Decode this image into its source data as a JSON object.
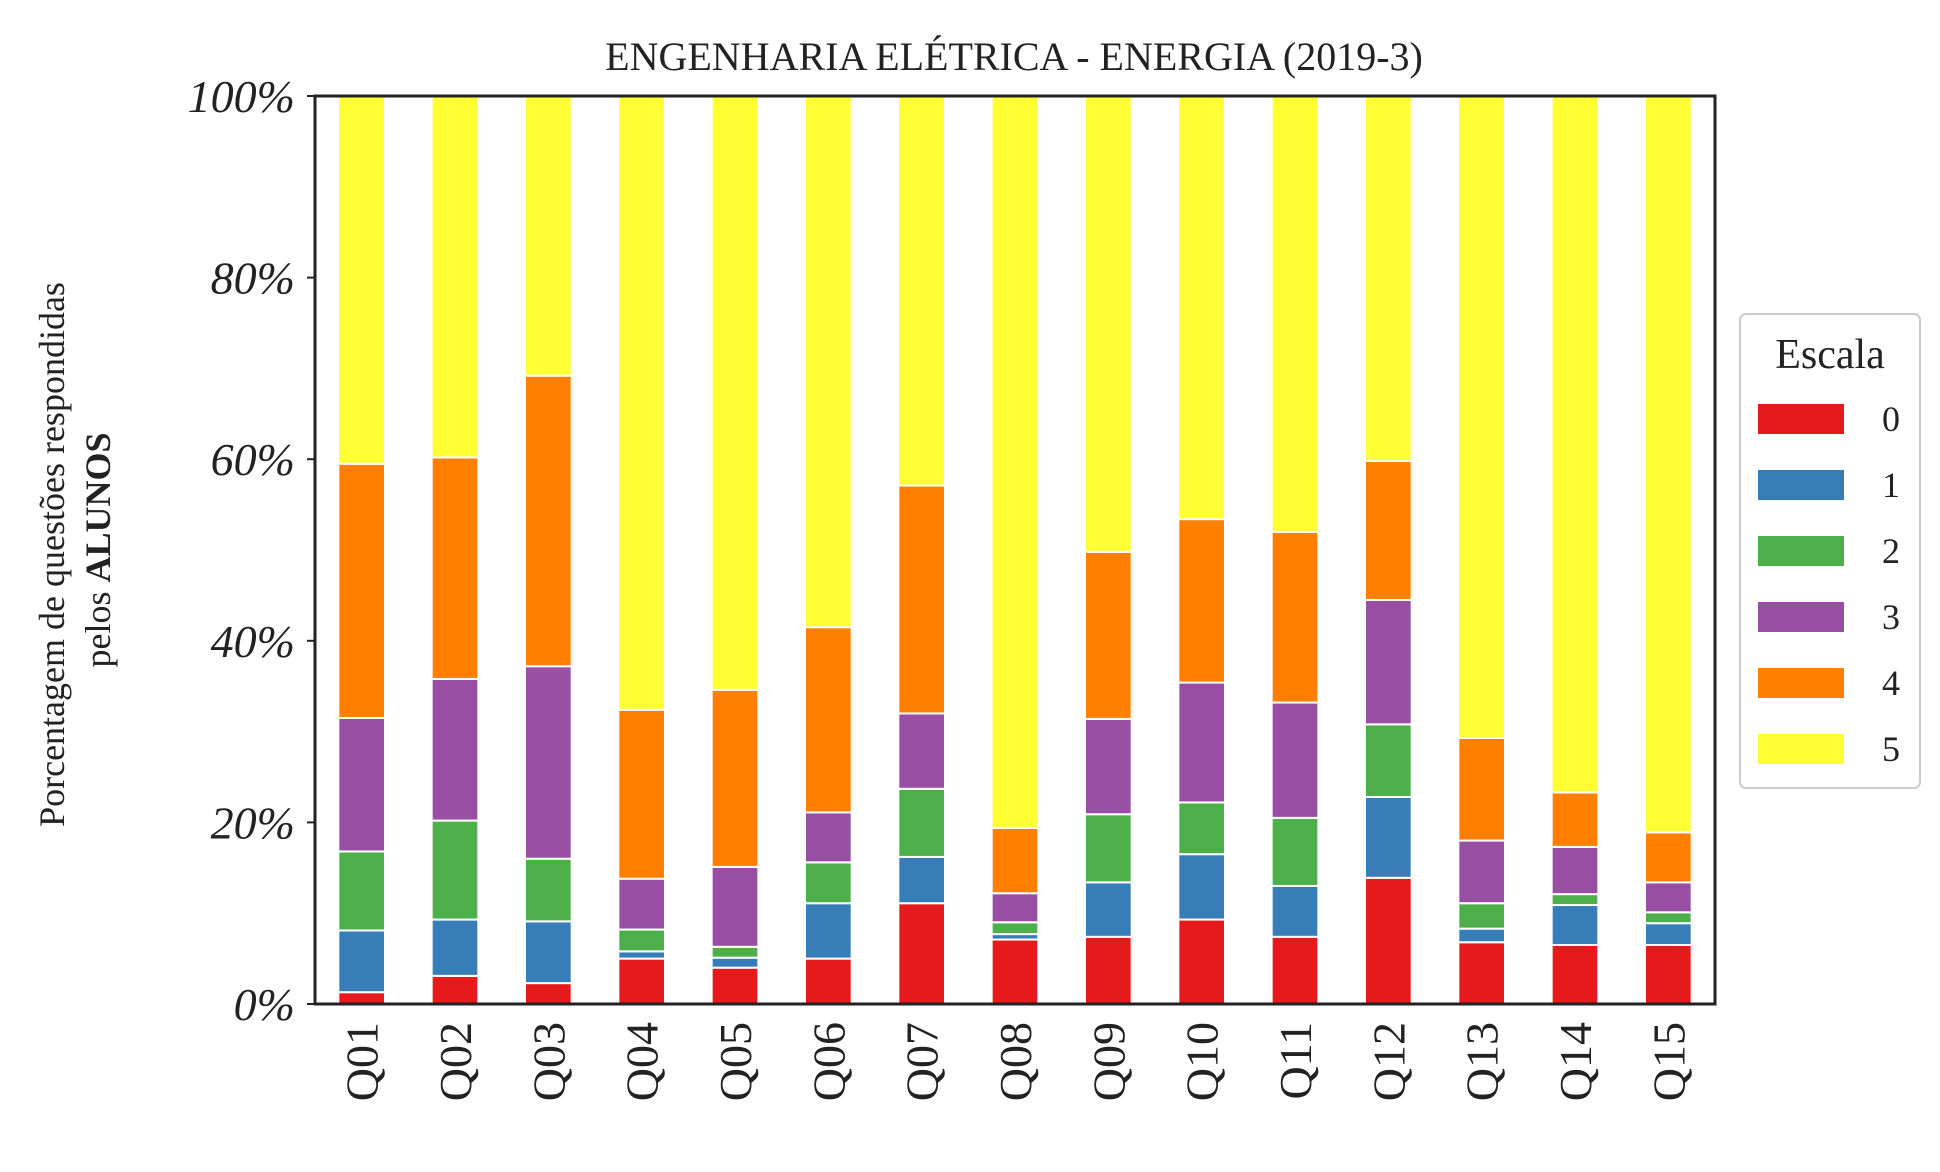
{
  "chart_data": {
    "type": "bar",
    "stacked": true,
    "title": "ENGENHARIA ELÉTRICA - ENERGIA (2019-3)",
    "ylabel_line1": "Porcentagem de questões respondidas",
    "ylabel_line2_prefix": "pelos ",
    "ylabel_line2_bold": "ALUNOS",
    "ylim": [
      0,
      100
    ],
    "yticks": [
      0,
      20,
      40,
      60,
      80,
      100
    ],
    "ytick_labels": [
      "0%",
      "20%",
      "40%",
      "60%",
      "80%",
      "100%"
    ],
    "grid": false,
    "legend_title": "Escala",
    "legend_position": "right",
    "categories": [
      "Q01",
      "Q02",
      "Q03",
      "Q04",
      "Q05",
      "Q06",
      "Q07",
      "Q08",
      "Q09",
      "Q10",
      "Q11",
      "Q12",
      "Q13",
      "Q14",
      "Q15"
    ],
    "series": [
      {
        "name": "0",
        "color": "#e41a1c",
        "values": [
          1.3,
          3.1,
          2.3,
          5.0,
          4.0,
          5.0,
          11.1,
          7.1,
          7.4,
          9.3,
          7.4,
          13.9,
          6.8,
          6.5,
          6.5
        ]
      },
      {
        "name": "1",
        "color": "#377eb8",
        "values": [
          6.8,
          6.2,
          6.8,
          0.8,
          1.1,
          6.1,
          5.1,
          0.6,
          6.0,
          7.2,
          5.6,
          8.9,
          1.5,
          4.4,
          2.4
        ]
      },
      {
        "name": "2",
        "color": "#4daf4a",
        "values": [
          8.7,
          10.9,
          6.9,
          2.4,
          1.2,
          4.5,
          7.5,
          1.3,
          7.5,
          5.7,
          7.5,
          8.0,
          2.8,
          1.2,
          1.2
        ]
      },
      {
        "name": "3",
        "color": "#984ea3",
        "values": [
          14.7,
          15.6,
          21.2,
          5.6,
          8.8,
          5.5,
          8.3,
          3.2,
          10.5,
          13.2,
          12.7,
          13.7,
          6.9,
          5.2,
          3.3
        ]
      },
      {
        "name": "4",
        "color": "#ff7f00",
        "values": [
          28.0,
          24.4,
          32.0,
          18.6,
          19.5,
          20.4,
          25.1,
          7.2,
          18.4,
          18.0,
          18.8,
          15.3,
          11.3,
          6.0,
          5.5
        ]
      },
      {
        "name": "5",
        "color": "#ffff33",
        "values": [
          40.5,
          39.8,
          30.8,
          67.6,
          65.4,
          58.5,
          42.9,
          80.6,
          50.2,
          46.6,
          48.0,
          40.2,
          70.7,
          76.7,
          81.1
        ]
      }
    ]
  }
}
